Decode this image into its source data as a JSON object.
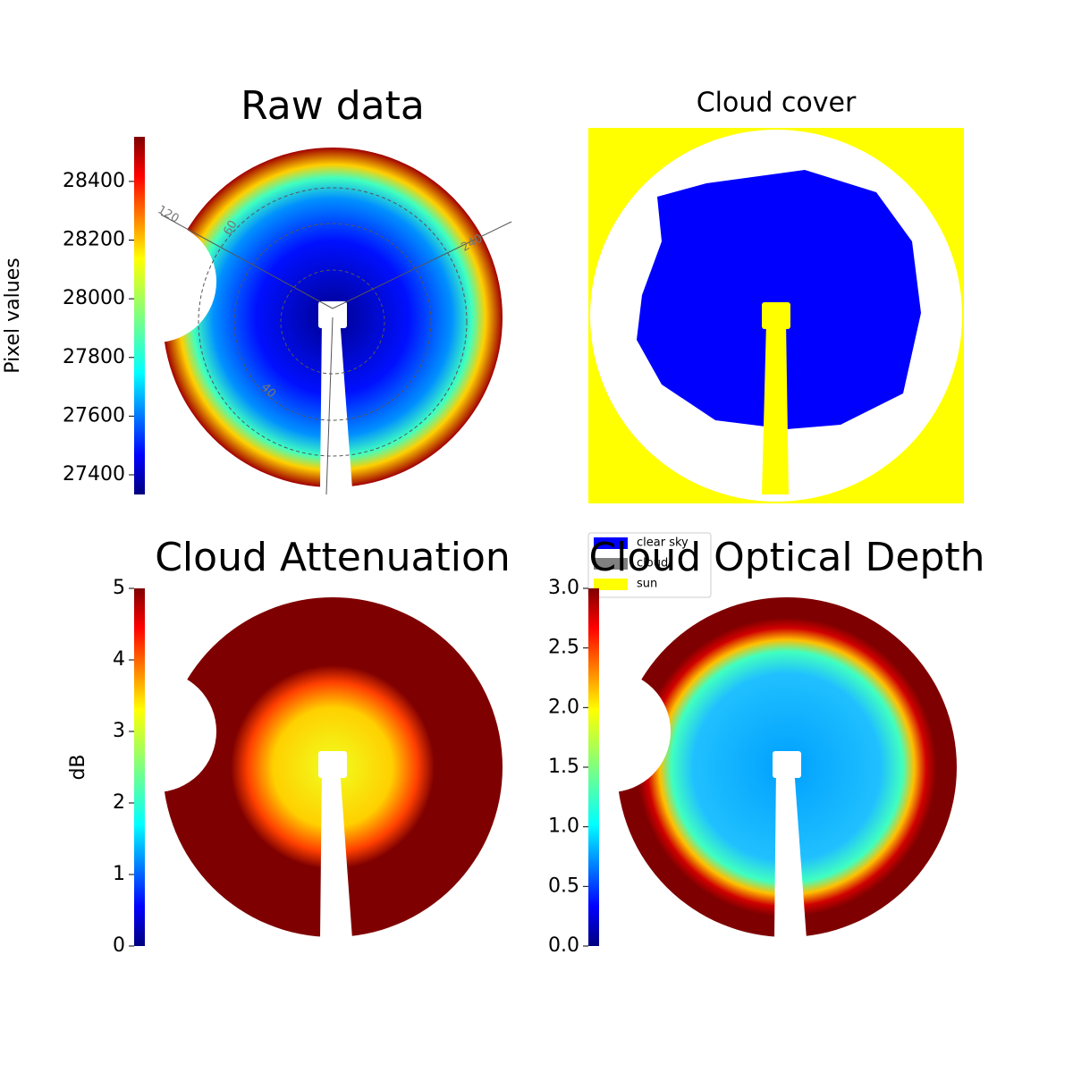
{
  "chart_data": [
    {
      "type": "image",
      "title": "Raw data",
      "colorbar_label": "Pixel values",
      "colormap": "jet",
      "ylim": [
        27333,
        28552
      ],
      "yticks": [
        27400,
        27600,
        27800,
        28000,
        28200,
        28400
      ],
      "annotations": [
        "120",
        "60",
        "240",
        "40"
      ]
    },
    {
      "type": "image",
      "title": "Cloud cover",
      "series": [
        {
          "name": "clear sky",
          "color": "#0000ff"
        },
        {
          "name": "cloud",
          "color": "#808080"
        },
        {
          "name": "sun",
          "color": "#ffff00"
        }
      ]
    },
    {
      "type": "image",
      "title": "Cloud Attenuation",
      "colorbar_label": "dB",
      "colormap": "jet",
      "ylim": [
        0,
        5
      ],
      "yticks": [
        0,
        1,
        2,
        3,
        4,
        5
      ]
    },
    {
      "type": "image",
      "title": "Cloud Optical Depth",
      "colormap": "jet",
      "ylim": [
        0,
        3
      ],
      "yticks": [
        {
          "value": 0,
          "label": "0.0"
        },
        {
          "value": 0.5,
          "label": "0.5"
        },
        {
          "value": 1,
          "label": "1.0"
        },
        {
          "value": 1.5,
          "label": "1.5"
        },
        {
          "value": 2,
          "label": "2.0"
        },
        {
          "value": 2.5,
          "label": "2.5"
        },
        {
          "value": 3,
          "label": "3.0"
        }
      ]
    }
  ]
}
